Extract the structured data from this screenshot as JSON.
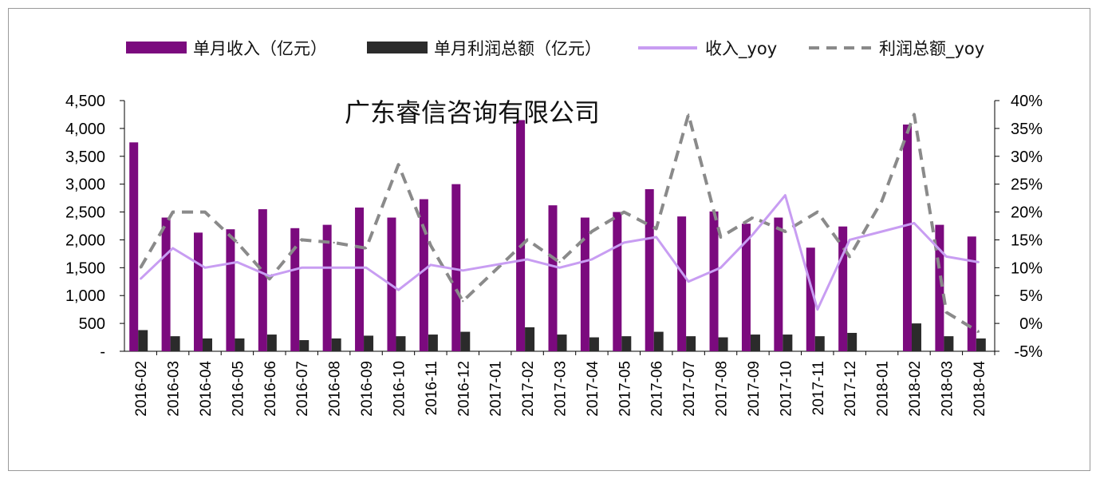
{
  "chart_data": {
    "type": "bar",
    "title": "",
    "watermark": "广东睿信咨询有限公司",
    "categories": [
      "2016-02",
      "2016-03",
      "2016-04",
      "2016-05",
      "2016-06",
      "2016-07",
      "2016-08",
      "2016-09",
      "2016-10",
      "2016-11",
      "2016-12",
      "2017-01",
      "2017-02",
      "2017-03",
      "2017-04",
      "2017-05",
      "2017-06",
      "2017-07",
      "2017-08",
      "2017-09",
      "2017-10",
      "2017-11",
      "2017-12",
      "2018-01",
      "2018-02",
      "2018-03",
      "2018-04"
    ],
    "y_left": {
      "ylim": [
        0,
        4500
      ],
      "ticks": [
        "-",
        "500",
        "1,000",
        "1,500",
        "2,000",
        "2,500",
        "3,000",
        "3,500",
        "4,000",
        "4,500"
      ]
    },
    "y_right": {
      "ylim": [
        -5,
        40
      ],
      "ticks": [
        "-5%",
        "0%",
        "5%",
        "10%",
        "15%",
        "20%",
        "25%",
        "30%",
        "35%",
        "40%"
      ]
    },
    "legend_position": "top",
    "series": [
      {
        "name": "单月收入（亿元）",
        "kind": "bar",
        "axis": "left",
        "color": "#7b0a7e",
        "values": [
          3750,
          2400,
          2130,
          2190,
          2550,
          2210,
          2270,
          2580,
          2400,
          2730,
          3000,
          null,
          4150,
          2620,
          2400,
          2500,
          2910,
          2420,
          2510,
          2290,
          2400,
          1860,
          2240,
          null,
          4070,
          2270,
          2060
        ]
      },
      {
        "name": "单月利润总额（亿元）",
        "kind": "bar",
        "axis": "left",
        "color": "#2b2b2b",
        "values": [
          380,
          270,
          230,
          230,
          300,
          200,
          230,
          280,
          270,
          300,
          350,
          null,
          430,
          300,
          250,
          270,
          350,
          270,
          250,
          300,
          300,
          270,
          330,
          null,
          500,
          270,
          230
        ]
      },
      {
        "name": "收入_yoy",
        "kind": "line",
        "axis": "right",
        "color": "#c89df2",
        "dash": "solid",
        "values": [
          8,
          13.5,
          10,
          11,
          8.5,
          10,
          10,
          10,
          6,
          10.5,
          9.5,
          10.5,
          11.5,
          10,
          11.5,
          14.5,
          15.5,
          7.5,
          10,
          16,
          23,
          2.5,
          15,
          16.5,
          18,
          12,
          11
        ]
      },
      {
        "name": "利润总额_yoy",
        "kind": "line",
        "axis": "right",
        "color": "#8a8a8a",
        "dash": "dashed",
        "values": [
          10,
          20,
          20,
          14.5,
          8,
          15,
          14.5,
          13.5,
          28.5,
          14,
          4,
          9.5,
          15,
          11,
          16.5,
          20,
          17,
          37.5,
          15.5,
          19,
          16.5,
          20,
          12,
          22,
          37.5,
          2,
          -1.5
        ]
      }
    ]
  }
}
